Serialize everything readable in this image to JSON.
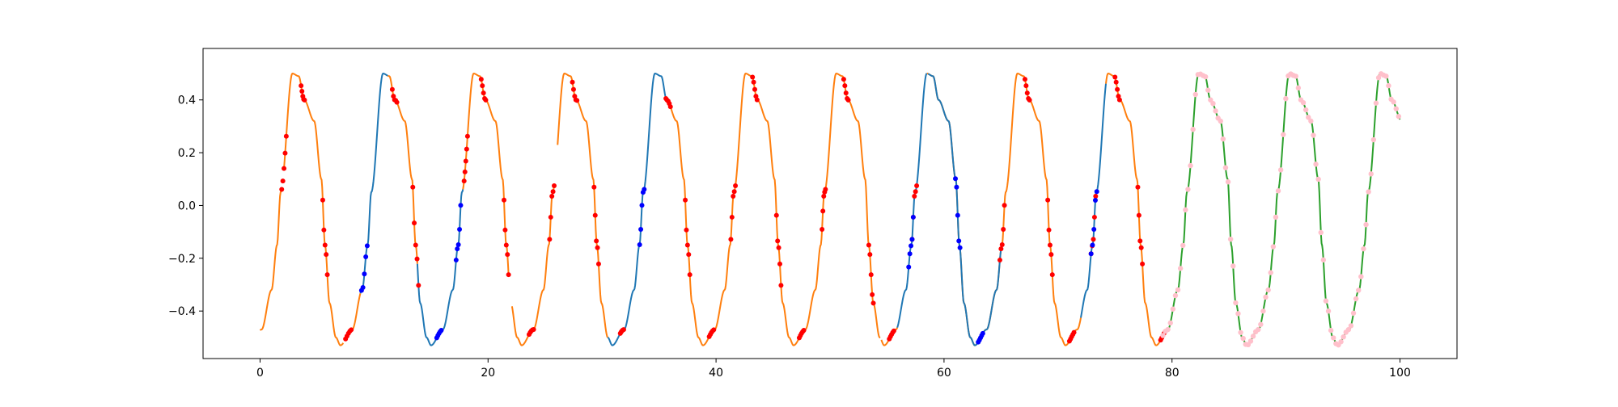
{
  "chart_data": {
    "type": "line",
    "title": "",
    "xlabel": "",
    "ylabel": "",
    "xlim": [
      -5,
      105
    ],
    "ylim": [
      -0.58,
      0.595
    ],
    "xticks": [
      0,
      20,
      40,
      60,
      80,
      100
    ],
    "yticks": [
      -0.4,
      -0.2,
      0.0,
      0.2,
      0.4
    ],
    "xtick_labels": [
      "0",
      "20",
      "40",
      "60",
      "80",
      "100"
    ],
    "ytick_labels": [
      "−0.4",
      "−0.2",
      "0.0",
      "0.2",
      "0.4"
    ],
    "grid": false,
    "signal": {
      "period": 7.95,
      "shift": 0.9,
      "knots_phase": [
        0.0,
        0.13,
        0.24,
        0.3,
        0.34,
        0.47,
        0.54,
        0.6,
        0.71,
        0.79,
        0.83,
        0.88,
        0.95,
        1.0
      ],
      "knots_value": [
        -0.53,
        -0.47,
        -0.32,
        -0.15,
        0.05,
        0.5,
        0.49,
        0.4,
        0.32,
        0.1,
        -0.15,
        -0.37,
        -0.5,
        -0.53
      ]
    },
    "series": [
      {
        "color": "#ff7f0e",
        "segments": [
          [
            0.0,
            1.9
          ],
          [
            2.1,
            7.3
          ],
          [
            7.5,
            8.8
          ],
          [
            11.2,
            13.8
          ],
          [
            17.8,
            21.8
          ],
          [
            22.1,
            23.6
          ],
          [
            24.0,
            25.8
          ],
          [
            26.1,
            30.5
          ],
          [
            35.9,
            54.4
          ],
          [
            54.5,
            55.9
          ],
          [
            58.5,
            72.0
          ],
          [
            74.2,
            78.9
          ],
          [
            79.0,
            79.6
          ]
        ]
      },
      {
        "color": "#1f77b4",
        "segments": [
          [
            8.8,
            11.2
          ],
          [
            13.8,
            17.8
          ],
          [
            30.5,
            35.9
          ],
          [
            55.9,
            58.5
          ],
          [
            58.6,
            65.0
          ],
          [
            72.0,
            74.2
          ]
        ]
      },
      {
        "color": "#2ca02c",
        "segments": [
          [
            79.6,
            100.0
          ]
        ]
      }
    ],
    "red_markers": [
      {
        "from": 1.9,
        "to": 2.3
      },
      {
        "from": 3.6,
        "to": 3.9
      },
      {
        "from": 5.5,
        "to": 5.9
      },
      {
        "from": 7.5,
        "to": 8.0
      },
      {
        "from": 11.6,
        "to": 12.0
      },
      {
        "from": 13.4,
        "to": 13.9
      },
      {
        "from": 17.9,
        "to": 18.2
      },
      {
        "from": 19.4,
        "to": 19.8
      },
      {
        "from": 21.4,
        "to": 21.8
      },
      {
        "from": 23.6,
        "to": 24.0
      },
      {
        "from": 25.4,
        "to": 25.8
      },
      {
        "from": 27.4,
        "to": 27.8
      },
      {
        "from": 29.3,
        "to": 29.7
      },
      {
        "from": 31.6,
        "to": 31.9
      },
      {
        "from": 35.6,
        "to": 36.0
      },
      {
        "from": 37.3,
        "to": 37.7
      },
      {
        "from": 39.4,
        "to": 39.8
      },
      {
        "from": 41.3,
        "to": 41.7
      },
      {
        "from": 43.2,
        "to": 43.6
      },
      {
        "from": 45.3,
        "to": 45.7
      },
      {
        "from": 47.3,
        "to": 47.7
      },
      {
        "from": 49.3,
        "to": 49.6
      },
      {
        "from": 51.2,
        "to": 51.6
      },
      {
        "from": 53.4,
        "to": 53.8
      },
      {
        "from": 55.2,
        "to": 55.6
      },
      {
        "from": 57.2,
        "to": 57.6
      },
      {
        "from": 64.9,
        "to": 65.3
      },
      {
        "from": 67.1,
        "to": 67.5
      },
      {
        "from": 69.1,
        "to": 69.5
      },
      {
        "from": 71.0,
        "to": 71.4
      },
      {
        "from": 72.9,
        "to": 73.3
      },
      {
        "from": 75.0,
        "to": 75.4
      },
      {
        "from": 77.0,
        "to": 77.4
      },
      {
        "from": 79.0,
        "to": 79.4
      }
    ],
    "blue_markers": [
      {
        "from": 8.9,
        "to": 9.4
      },
      {
        "from": 15.5,
        "to": 15.9
      },
      {
        "from": 17.2,
        "to": 17.6
      },
      {
        "from": 33.3,
        "to": 33.7
      },
      {
        "from": 56.9,
        "to": 57.3
      },
      {
        "from": 61.0,
        "to": 61.4
      },
      {
        "from": 63.0,
        "to": 63.4
      },
      {
        "from": 72.9,
        "to": 73.4
      }
    ],
    "pink_markers": {
      "from": 79.2,
      "to": 99.9,
      "step": 0.22
    },
    "colors": {
      "orange": "#ff7f0e",
      "blue": "#1f77b4",
      "green": "#2ca02c",
      "red_marker": "#ff0000",
      "blue_marker": "#0000ff",
      "pink_marker": "#ffc0cb"
    }
  }
}
